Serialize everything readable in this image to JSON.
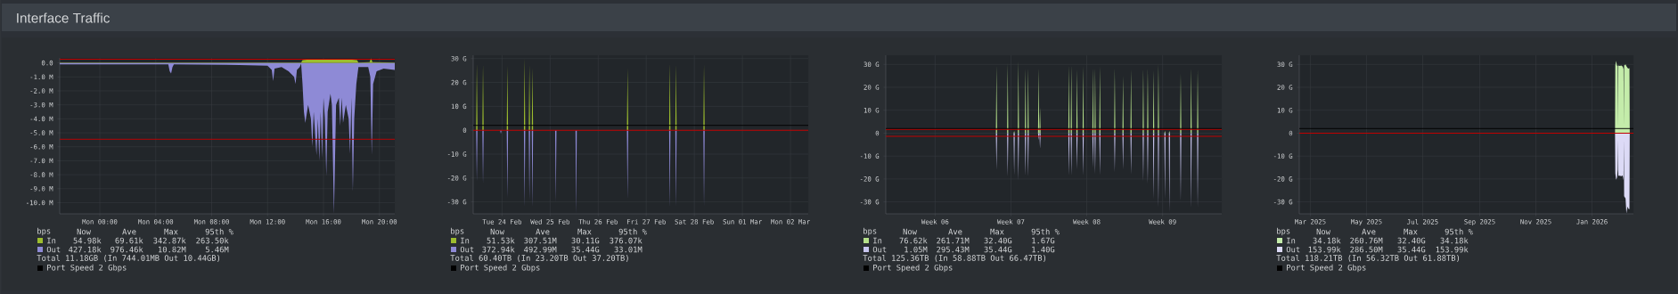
{
  "chart_data": [
    {
      "type": "area",
      "title": "Interface Traffic",
      "grid": true,
      "legend": "bottom",
      "xlim": [
        "2026-03-01T21:08",
        "2026-03-02T21:06"
      ],
      "ylim": [
        -10.8,
        0.36
      ],
      "xticks": [
        {
          "value": "2026-03-02T00:00",
          "label": "Mon 00:00"
        },
        {
          "value": "2026-03-02T04:00",
          "label": "Mon 04:00"
        },
        {
          "value": "2026-03-02T08:00",
          "label": "Mon 08:00"
        },
        {
          "value": "2026-03-02T12:00",
          "label": "Mon 12:00"
        },
        {
          "value": "2026-03-02T16:00",
          "label": "Mon 16:00"
        },
        {
          "value": "2026-03-02T20:00",
          "label": "Mon 20:00"
        }
      ],
      "yticks": [
        {
          "value": 0,
          "label": "0.0"
        },
        {
          "value": -1,
          "label": "-1.0 M"
        },
        {
          "value": -2,
          "label": "-2.0 M"
        },
        {
          "value": -3,
          "label": "-3.0 M"
        },
        {
          "value": -4,
          "label": "-4.0 M"
        },
        {
          "value": -5,
          "label": "-5.0 M"
        },
        {
          "value": -6,
          "label": "-6.0 M"
        },
        {
          "value": -7,
          "label": "-7.0 M"
        },
        {
          "value": -8,
          "label": "-8.0 M"
        },
        {
          "value": -9,
          "label": "-9.0 M"
        },
        {
          "value": -10,
          "label": "-10.0 M"
        }
      ],
      "series": [
        {
          "name": "In",
          "color": "#9dbd2e",
          "x": [
            "2026-03-01T21:08",
            "2026-03-02T14:24",
            "2026-03-02T14:30",
            "2026-03-02T15:30",
            "2026-03-02T16:30",
            "2026-03-02T17:30",
            "2026-03-02T18:24",
            "2026-03-02T18:30",
            "2026-03-02T19:18",
            "2026-03-02T19:24",
            "2026-03-02T19:30",
            "2026-03-02T21:06"
          ],
          "values": [
            0.03,
            0.03,
            0.2,
            0.3,
            0.25,
            0.28,
            0.2,
            0.03,
            0.05,
            0.34,
            0.05,
            0.03
          ]
        },
        {
          "name": "Out",
          "color": "#8e8ad6",
          "x": [
            "2026-03-01T21:08",
            "2026-03-01T23:30",
            "2026-03-02T04:54",
            "2026-03-02T05:00",
            "2026-03-02T05:06",
            "2026-03-02T05:12",
            "2026-03-02T05:18",
            "2026-03-02T10:00",
            "2026-03-02T12:00",
            "2026-03-02T12:18",
            "2026-03-02T12:24",
            "2026-03-02T12:30",
            "2026-03-02T13:00",
            "2026-03-02T13:30",
            "2026-03-02T13:54",
            "2026-03-02T14:00",
            "2026-03-02T14:06",
            "2026-03-02T14:18",
            "2026-03-02T14:24",
            "2026-03-02T14:30",
            "2026-03-02T14:36",
            "2026-03-02T14:42",
            "2026-03-02T14:54",
            "2026-03-02T15:06",
            "2026-03-02T15:12",
            "2026-03-02T15:18",
            "2026-03-02T15:30",
            "2026-03-02T15:36",
            "2026-03-02T15:42",
            "2026-03-02T15:48",
            "2026-03-02T15:54",
            "2026-03-02T16:00",
            "2026-03-02T16:06",
            "2026-03-02T16:12",
            "2026-03-02T16:18",
            "2026-03-02T16:30",
            "2026-03-02T16:36",
            "2026-03-02T16:45",
            "2026-03-02T16:54",
            "2026-03-02T17:06",
            "2026-03-02T17:12",
            "2026-03-02T17:18",
            "2026-03-02T17:24",
            "2026-03-02T17:36",
            "2026-03-02T17:48",
            "2026-03-02T17:54",
            "2026-03-02T18:00",
            "2026-03-02T18:06",
            "2026-03-02T18:12",
            "2026-03-02T18:21",
            "2026-03-02T18:30",
            "2026-03-02T19:12",
            "2026-03-02T19:21",
            "2026-03-02T19:27",
            "2026-03-02T19:33",
            "2026-03-02T19:48",
            "2026-03-02T20:18",
            "2026-03-02T21:06"
          ],
          "values": [
            -0.1,
            -0.1,
            -0.1,
            -0.6,
            -0.76,
            -0.3,
            -0.1,
            -0.15,
            -0.2,
            -0.5,
            -1.3,
            -0.4,
            -0.3,
            -0.6,
            -1.0,
            -1.5,
            -0.5,
            -0.3,
            -0.05,
            -1.5,
            -3.5,
            -4.3,
            -3.0,
            -4.0,
            -6.0,
            -3.5,
            -6.6,
            -4.0,
            -7.0,
            -3.5,
            -6.8,
            -2.5,
            -4.0,
            -8.1,
            -3.5,
            -2.2,
            -3.0,
            -10.8,
            -3.0,
            -2.5,
            -4.5,
            -2.5,
            -4.3,
            -3.0,
            -4.0,
            -6.5,
            -2.5,
            -9.2,
            -4.0,
            -1.5,
            -0.3,
            -0.3,
            -1.0,
            -6.6,
            -1.5,
            -0.6,
            -0.4,
            -0.5
          ]
        }
      ],
      "ref_lines": [
        {
          "axis": "y",
          "value": 0.2635,
          "color": "#c00000"
        },
        {
          "axis": "y",
          "value": -5.46,
          "color": "#c00000"
        }
      ],
      "annotations": [
        "bps",
        "Now",
        "Ave",
        "Max",
        "95th %",
        "54.98k",
        "69.61k",
        "342.87k",
        "263.50k",
        "427.18k",
        "976.46k",
        "10.82M",
        "5.46M",
        "Total 11.18GB (In 744.01MB Out 10.44GB)",
        "Port Speed 2 Gbps"
      ]
    },
    {
      "type": "area",
      "grid": true,
      "legend": "bottom",
      "xlim": [
        "2026-02-23T21:36",
        "2026-03-02T20:53"
      ],
      "ylim": [
        -35.0,
        31.4
      ],
      "xticks": [
        {
          "value": "2026-02-24T12:00",
          "label": "Tue 24 Feb"
        },
        {
          "value": "2026-02-25T12:00",
          "label": "Wed 25 Feb"
        },
        {
          "value": "2026-02-26T12:00",
          "label": "Thu 26 Feb"
        },
        {
          "value": "2026-02-27T12:00",
          "label": "Fri 27 Feb"
        },
        {
          "value": "2026-02-28T12:00",
          "label": "Sat 28 Feb"
        },
        {
          "value": "2026-03-01T12:00",
          "label": "Sun 01 Mar"
        },
        {
          "value": "2026-03-02T12:00",
          "label": "Mon 02 Mar"
        }
      ],
      "yticks": [
        {
          "value": 30,
          "label": "30 G"
        },
        {
          "value": 20,
          "label": "20 G"
        },
        {
          "value": 10,
          "label": "10 G"
        },
        0,
        {
          "value": -10,
          "label": "-10 G"
        },
        {
          "value": -20,
          "label": "-20 G"
        },
        {
          "value": -30,
          "label": "-30 G"
        }
      ],
      "x": [
        "2026-02-23T23:04",
        "2026-02-23T23:24",
        "2026-02-23T23:44",
        "2026-02-24T02:10",
        "2026-02-24T02:30",
        "2026-02-24T02:50",
        "2026-02-24T11:04",
        "2026-02-24T11:24",
        "2026-02-24T11:44",
        "2026-02-24T14:20",
        "2026-02-24T14:40",
        "2026-02-24T15:00",
        "2026-02-24T22:55",
        "2026-02-24T23:15",
        "2026-02-24T23:35",
        "2026-02-25T01:20",
        "2026-02-25T01:40",
        "2026-02-25T02:00",
        "2026-02-25T02:50",
        "2026-02-25T03:10",
        "2026-02-25T03:30",
        "2026-02-25T14:30",
        "2026-02-25T14:50",
        "2026-02-25T15:10",
        "2026-02-26T00:40",
        "2026-02-26T01:00",
        "2026-02-26T01:20",
        "2026-02-27T02:20",
        "2026-02-27T02:40",
        "2026-02-27T03:00",
        "2026-02-27T23:25",
        "2026-02-27T23:45",
        "2026-02-28T00:05",
        "2026-02-28T02:30",
        "2026-02-28T02:50",
        "2026-02-28T03:10",
        "2026-02-28T16:30",
        "2026-02-28T16:50",
        "2026-02-28T17:10"
      ],
      "series": [
        {
          "name": "In",
          "color": "#9dbd2e",
          "values": [
            0,
            28,
            0,
            0,
            27.7,
            0,
            0,
            0,
            0,
            0,
            27,
            0,
            0,
            30.1,
            0,
            0,
            27.5,
            0,
            0,
            26.2,
            0,
            0,
            0,
            0,
            0,
            0,
            0,
            0,
            26,
            0,
            0,
            28,
            0,
            0,
            27.5,
            0,
            0,
            27.5,
            0
          ]
        },
        {
          "name": "Out",
          "color": "#8e8ad6",
          "values": [
            0,
            -21.4,
            0,
            0,
            -22.2,
            0,
            0,
            -1.5,
            0,
            0,
            -28.6,
            0,
            0,
            -32.2,
            0,
            0,
            -29.4,
            0,
            0,
            -32.3,
            0,
            0,
            -30,
            0,
            0,
            -34.7,
            0,
            0,
            -29,
            0,
            0,
            -32.3,
            0,
            0,
            -31.9,
            0,
            0,
            -31.9,
            0
          ]
        }
      ],
      "ref_lines": [
        {
          "axis": "y",
          "value": 2,
          "color": "#000000",
          "label": "Port Speed 2 Gbps"
        },
        {
          "axis": "y",
          "value": 0,
          "color": "#c00000"
        }
      ],
      "annotations": [
        "bps",
        "Now",
        "Ave",
        "Max",
        "95th %",
        "51.53k",
        "307.51M",
        "30.11G",
        "376.07k",
        "372.94k",
        "492.99M",
        "35.44G",
        "33.01M",
        "Total 60.40TB (In 23.20TB Out 37.20TB)"
      ]
    },
    {
      "type": "area",
      "grid": true,
      "legend": "bottom",
      "xlim": [
        "2026-01-30T22:48",
        "2026-03-02T23:02"
      ],
      "ylim": [
        -35.2,
        34
      ],
      "xticks": [
        {
          "value": "2026-02-04T12:00",
          "label": "Week 06"
        },
        {
          "value": "2026-02-11T12:00",
          "label": "Week 07"
        },
        {
          "value": "2026-02-18T12:00",
          "label": "Week 08"
        },
        {
          "value": "2026-02-25T12:00",
          "label": "Week 09"
        }
      ],
      "yticks": [
        {
          "value": 30,
          "label": "30 G"
        },
        {
          "value": 20,
          "label": "20 G"
        },
        {
          "value": 10,
          "label": "10 G"
        },
        0,
        {
          "value": -10,
          "label": "-10 G"
        },
        {
          "value": -20,
          "label": "-20 G"
        },
        {
          "value": -30,
          "label": "-30 G"
        }
      ],
      "x": [
        "2026-02-10T02:40",
        "2026-02-10T04:00",
        "2026-02-10T05:20",
        "2026-02-11T03:30",
        "2026-02-11T04:50",
        "2026-02-11T06:10",
        "2026-02-11T17:50",
        "2026-02-11T19:10",
        "2026-02-11T20:30",
        "2026-02-12T03:10",
        "2026-02-12T04:30",
        "2026-02-12T05:50",
        "2026-02-12T18:55",
        "2026-02-12T20:15",
        "2026-02-12T21:35",
        "2026-02-13T00:50",
        "2026-02-13T02:10",
        "2026-02-13T03:30",
        "2026-02-14T00:00",
        "2026-02-14T01:20",
        "2026-02-14T02:40",
        "2026-02-14T03:10",
        "2026-02-14T04:30",
        "2026-02-14T05:50",
        "2026-02-16T19:10",
        "2026-02-16T20:30",
        "2026-02-16T21:50",
        "2026-02-17T00:25",
        "2026-02-17T01:45",
        "2026-02-17T03:05",
        "2026-02-17T13:00",
        "2026-02-17T14:20",
        "2026-02-17T15:40",
        "2026-02-18T02:45",
        "2026-02-18T04:05",
        "2026-02-18T05:25",
        "2026-02-19T00:25",
        "2026-02-19T01:45",
        "2026-02-19T03:05",
        "2026-02-19T05:10",
        "2026-02-19T06:30",
        "2026-02-19T07:50",
        "2026-02-19T15:45",
        "2026-02-19T17:05",
        "2026-02-19T18:25",
        "2026-02-21T00:40",
        "2026-02-21T02:00",
        "2026-02-21T03:20",
        "2026-02-21T19:00",
        "2026-02-21T20:20",
        "2026-02-21T21:40",
        "2026-02-22T12:45",
        "2026-02-22T14:05",
        "2026-02-22T15:25",
        "2026-02-23T15:50",
        "2026-02-23T17:10",
        "2026-02-23T18:30",
        "2026-02-24T01:45",
        "2026-02-24T03:05",
        "2026-02-24T04:25",
        "2026-02-24T14:50",
        "2026-02-24T16:10",
        "2026-02-24T17:30",
        "2026-02-25T01:25",
        "2026-02-25T02:45",
        "2026-02-25T04:05",
        "2026-02-25T15:50",
        "2026-02-25T17:10",
        "2026-02-25T18:30",
        "2026-02-26T01:45",
        "2026-02-26T03:05",
        "2026-02-26T04:25",
        "2026-02-27T02:50",
        "2026-02-27T04:10",
        "2026-02-27T05:30",
        "2026-02-28T01:50",
        "2026-02-28T03:10",
        "2026-02-28T04:30",
        "2026-02-28T16:25",
        "2026-02-28T17:45",
        "2026-02-28T19:05"
      ],
      "series": [
        {
          "name": "In",
          "color": "#b5e08a",
          "values": [
            0,
            29.6,
            0,
            0,
            30.5,
            0,
            0,
            1,
            0,
            0,
            31.5,
            0,
            0,
            28.2,
            0,
            0,
            28.6,
            0,
            0,
            28.6,
            0,
            0,
            11.2,
            0,
            0,
            29.7,
            0,
            0,
            29.7,
            0,
            0,
            27.9,
            0,
            0,
            29.2,
            0,
            0,
            28.6,
            0,
            0,
            28.6,
            0,
            0,
            29.2,
            0,
            0,
            28.6,
            0,
            0,
            25.1,
            0,
            0,
            27.9,
            0,
            0,
            28.2,
            0,
            0,
            28.6,
            0,
            0,
            27.5,
            0,
            0,
            30.1,
            0,
            0,
            1,
            0,
            0,
            1,
            0,
            0,
            26,
            0,
            0,
            28.6,
            0,
            0,
            27.9,
            0
          ]
        },
        {
          "name": "Out",
          "color": "#c8c6f0",
          "values": [
            0,
            -16.1,
            0,
            0,
            -19,
            0,
            0,
            -18.4,
            0,
            0,
            -20.6,
            0,
            0,
            -18.7,
            0,
            0,
            -19.3,
            0,
            0,
            -3,
            0,
            0,
            -6.8,
            0,
            0,
            -18.7,
            0,
            0,
            -18.7,
            0,
            0,
            -15.8,
            0,
            0,
            -18.4,
            0,
            0,
            -15.2,
            0,
            0,
            -18,
            0,
            0,
            -18.4,
            0,
            0,
            -17.1,
            0,
            0,
            -15.8,
            0,
            0,
            -18,
            0,
            0,
            -21.2,
            0,
            0,
            -22.3,
            0,
            0,
            -29.1,
            0,
            0,
            -32.6,
            0,
            0,
            -28.7,
            0,
            0,
            -34.5,
            0,
            0,
            -30,
            0,
            0,
            -32.9,
            0,
            0,
            -32.6,
            0
          ]
        }
      ],
      "ref_lines": [
        {
          "axis": "y",
          "value": 2,
          "color": "#000000",
          "label": "Port Speed 2 Gbps"
        },
        {
          "axis": "y",
          "value": 1.67,
          "color": "#c00000"
        },
        {
          "axis": "y",
          "value": -1.4,
          "color": "#c00000"
        }
      ],
      "annotations": [
        "bps",
        "Now",
        "Ave",
        "Max",
        "95th %",
        "76.62k",
        "261.71M",
        "32.40G",
        "1.67G",
        "1.05M",
        "295.43M",
        "35.44G",
        "1.40G",
        "Total 125.36TB (In 58.88TB Out 66.47TB)"
      ]
    },
    {
      "type": "area",
      "grid": true,
      "legend": "bottom",
      "xlim": [
        "2025-03-04",
        "2026-03-02"
      ],
      "ylim": [
        -35.2,
        34
      ],
      "xticks": [
        {
          "value": "2025-03-16",
          "label": "Mar 2025"
        },
        {
          "value": "2025-05-16",
          "label": "May 2025"
        },
        {
          "value": "2025-07-16",
          "label": "Jul 2025"
        },
        {
          "value": "2025-09-16",
          "label": "Sep 2025"
        },
        {
          "value": "2025-11-16",
          "label": "Nov 2025"
        },
        {
          "value": "2026-01-16",
          "label": "Jan 2026"
        }
      ],
      "yticks": [
        {
          "value": 30,
          "label": "30 G"
        },
        {
          "value": 20,
          "label": "20 G"
        },
        {
          "value": 10,
          "label": "10 G"
        },
        0,
        {
          "value": -10,
          "label": "-10 G"
        },
        {
          "value": -20,
          "label": "-20 G"
        },
        {
          "value": -30,
          "label": "-30 G"
        }
      ],
      "x": [
        "2026-02-10T00:00",
        "2026-02-10T07:00",
        "2026-02-11T04:00",
        "2026-02-12T02:00",
        "2026-02-12T23:00",
        "2026-02-13T06:00",
        "2026-02-13T14:00",
        "2026-02-15T06:00",
        "2026-02-16T19:00",
        "2026-02-18T08:00",
        "2026-02-19T06:00",
        "2026-02-19T14:00",
        "2026-02-19T21:00",
        "2026-02-21T10:00",
        "2026-02-22T08:00",
        "2026-02-23T14:00",
        "2026-02-24T11:00",
        "2026-02-25T16:00",
        "2026-02-26T00:00"
      ],
      "series": [
        {
          "name": "In",
          "color": "#c4ecaa",
          "values": [
            0,
            29.5,
            31.6,
            29.5,
            29.3,
            3,
            29.5,
            29.3,
            29.5,
            29,
            28,
            3,
            29.5,
            30,
            29.2,
            28.5,
            28.2,
            28.4,
            0
          ]
        },
        {
          "name": "Out",
          "color": "#dcdaf6",
          "values": [
            0,
            -17.5,
            -20.3,
            -19.5,
            -16,
            -3,
            -18.6,
            -18.6,
            -18.8,
            -18.5,
            -20.5,
            -3,
            -27.5,
            -28.5,
            -35,
            -32,
            -33,
            -33.2,
            0
          ]
        }
      ],
      "ref_lines": [
        {
          "axis": "y",
          "value": 2,
          "color": "#000000",
          "label": "Port Speed 2 Gbps"
        },
        {
          "axis": "y",
          "value": 0,
          "color": "#c00000"
        }
      ],
      "annotations": [
        "bps",
        "Now",
        "Ave",
        "Max",
        "95th %",
        "34.18k",
        "260.76M",
        "32.40G",
        "34.18k",
        "153.99k",
        "286.50M",
        "35.44G",
        "153.99k",
        "Total 118.21TB (In 56.32TB Out 61.88TB)"
      ]
    }
  ]
}
